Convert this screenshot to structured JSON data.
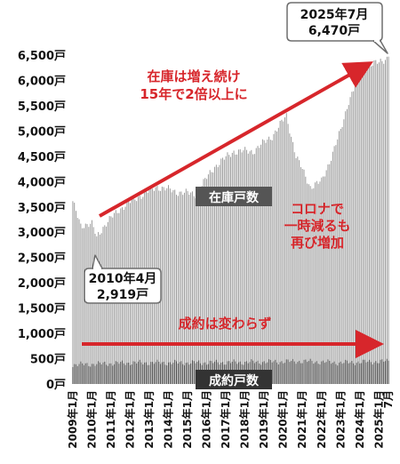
{
  "chart_data": {
    "type": "bar",
    "title": "",
    "xlabel": "",
    "ylabel": "",
    "ylim": [
      0,
      6500
    ],
    "unit_suffix": "戸",
    "y_ticks": [
      0,
      500,
      1000,
      1500,
      2000,
      2500,
      3000,
      3500,
      4000,
      4500,
      5000,
      5500,
      6000,
      6500
    ],
    "y_tick_labels": [
      "0戸",
      "500戸",
      "1,000戸",
      "1,500戸",
      "2,000戸",
      "2,500戸",
      "3,000戸",
      "3,500戸",
      "4,000戸",
      "4,500戸",
      "5,000戸",
      "5,500戸",
      "6,000戸",
      "6,500戸"
    ],
    "x_tick_labels": [
      "2009年1月",
      "2010年1月",
      "2011年1月",
      "2012年1月",
      "2013年1月",
      "2014年1月",
      "2015年1月",
      "2016年1月",
      "2017年1月",
      "2018年1月",
      "2019年1月",
      "2020年1月",
      "2021年1月",
      "2022年1月",
      "2023年1月",
      "2024年1月",
      "2025年1月",
      "7月"
    ],
    "period": {
      "start": "2009-01",
      "end": "2025-07",
      "frequency": "monthly"
    },
    "series": [
      {
        "name": "在庫戸数",
        "color": "#9b9b9b",
        "anchors": [
          {
            "date": "2009-01",
            "value": 3580
          },
          {
            "date": "2009-06",
            "value": 3150
          },
          {
            "date": "2010-01",
            "value": 3150
          },
          {
            "date": "2010-04",
            "value": 2919
          },
          {
            "date": "2010-08",
            "value": 3100
          },
          {
            "date": "2011-06",
            "value": 3450
          },
          {
            "date": "2012-06",
            "value": 3700
          },
          {
            "date": "2013-06",
            "value": 3900
          },
          {
            "date": "2014-06",
            "value": 3800
          },
          {
            "date": "2015-06",
            "value": 3750
          },
          {
            "date": "2016-06",
            "value": 4300
          },
          {
            "date": "2017-06",
            "value": 4600
          },
          {
            "date": "2018-06",
            "value": 4600
          },
          {
            "date": "2019-06",
            "value": 4900
          },
          {
            "date": "2020-03",
            "value": 5300
          },
          {
            "date": "2020-09",
            "value": 4500
          },
          {
            "date": "2021-06",
            "value": 3900
          },
          {
            "date": "2022-01",
            "value": 4000
          },
          {
            "date": "2022-06",
            "value": 4400
          },
          {
            "date": "2023-01",
            "value": 5000
          },
          {
            "date": "2023-06",
            "value": 5600
          },
          {
            "date": "2024-01",
            "value": 6100
          },
          {
            "date": "2024-06",
            "value": 6300
          },
          {
            "date": "2025-01",
            "value": 6350
          },
          {
            "date": "2025-07",
            "value": 6470
          }
        ]
      },
      {
        "name": "成約戸数",
        "color": "#4a4a4a",
        "anchors": [
          {
            "date": "2009-01",
            "value": 380
          },
          {
            "date": "2012-01",
            "value": 420
          },
          {
            "date": "2015-01",
            "value": 420
          },
          {
            "date": "2018-01",
            "value": 430
          },
          {
            "date": "2021-01",
            "value": 450
          },
          {
            "date": "2023-01",
            "value": 420
          },
          {
            "date": "2025-07",
            "value": 450
          }
        ]
      }
    ],
    "annotations": {
      "peak": {
        "line1": "2025年7月",
        "line2": "6,470戸"
      },
      "trough": {
        "line1": "2010年4月",
        "line2": "2,919戸"
      },
      "trend_up": {
        "line1": "在庫は増え続け",
        "line2": "15年で2倍以上に"
      },
      "covid": {
        "line1": "コロナで",
        "line2": "一時減るも",
        "line3": "再び増加"
      },
      "flat": {
        "text": "成約は変わらず"
      },
      "stock_label": "在庫戸数",
      "sales_label": "成約戸数"
    }
  }
}
